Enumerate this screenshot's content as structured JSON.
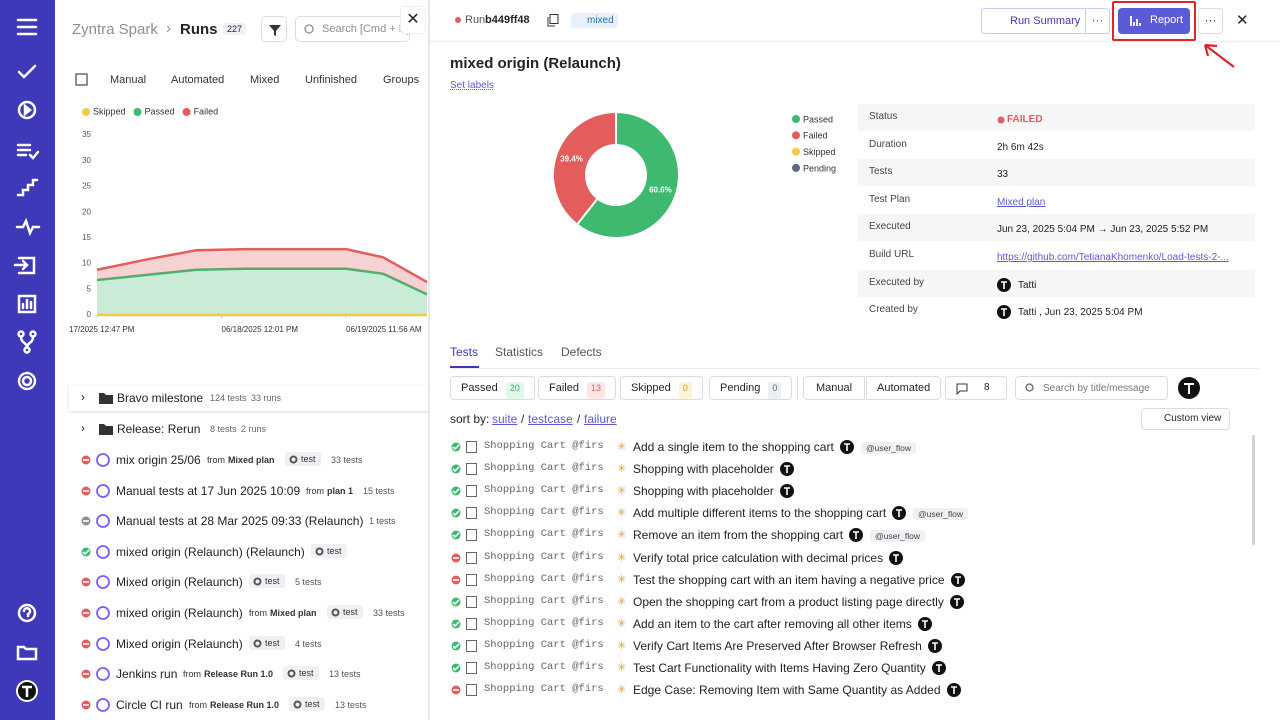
{
  "header": {
    "breadcrumb": "Zyntra Spark",
    "page": "Runs",
    "count": 227,
    "search": "Search [Cmd + K]"
  },
  "left_tabs": [
    "Manual",
    "Automated",
    "Mixed",
    "Unfinished",
    "Groups"
  ],
  "left_chart": {
    "type": "area",
    "legend": [
      {
        "name": "Skipped",
        "color": "#f2c94c"
      },
      {
        "name": "Passed",
        "color": "#3fb96f"
      },
      {
        "name": "Failed",
        "color": "#e35d5d"
      }
    ],
    "x": [
      0,
      0.4,
      0.8,
      1.2,
      1.6,
      2.0,
      2.3,
      2.65
    ],
    "xlim": [
      0,
      2.65
    ],
    "xticks": [
      {
        "value": 0,
        "label": "17/2025 12:47 PM"
      },
      {
        "value": 1,
        "label": "06/18/2025 12:01 PM"
      },
      {
        "value": 2,
        "label": "06/19/2025 11:56 AM"
      }
    ],
    "ylim": [
      0,
      35
    ],
    "yticks": [
      0,
      5,
      10,
      15,
      20,
      25,
      30,
      35
    ],
    "grid": false,
    "stacked": true,
    "series": [
      {
        "name": "Skipped",
        "color": "#f2c94c",
        "values": [
          0,
          0,
          0,
          0,
          0,
          0,
          0,
          0
        ]
      },
      {
        "name": "Passed",
        "color": "#3fb96f",
        "values": [
          6.8,
          7.8,
          8.8,
          9,
          9,
          9,
          8,
          4
        ]
      },
      {
        "name": "Failed",
        "color": "#e35d5d",
        "values": [
          2,
          3,
          3.8,
          3.8,
          3.8,
          3.8,
          3.2,
          2.4
        ]
      }
    ]
  },
  "groups": [
    {
      "name": "Bravo milestone",
      "tests": "124 tests",
      "runs": "33 runs"
    },
    {
      "name": "Release: Rerun",
      "tests": "8 tests",
      "runs": "2 runs"
    }
  ],
  "runs": [
    {
      "title": "mix origin 25/06",
      "status": "failed",
      "from": "from",
      "plan": "Mixed plan",
      "tag": "test",
      "tests": "33 tests"
    },
    {
      "title": "Manual tests at 17 Jun 2025 10:09",
      "status": "failed",
      "from": "from",
      "plan": "plan 1",
      "tests": "15 tests"
    },
    {
      "title": "Manual tests at 28 Mar 2025 09:33 (Relaunch)",
      "status": "skipped",
      "tests": "1 tests"
    },
    {
      "title": "mixed origin (Relaunch) (Relaunch)",
      "status": "passed",
      "tag": "test"
    },
    {
      "title": "Mixed origin (Relaunch)",
      "status": "failed",
      "tag": "test",
      "tests": "5 tests"
    },
    {
      "title": "mixed origin (Relaunch)",
      "status": "failed",
      "from": "from",
      "plan": "Mixed plan",
      "tag": "test",
      "tests": "33 tests"
    },
    {
      "title": "Mixed origin (Relaunch)",
      "status": "failed",
      "tag": "test",
      "tests": "4 tests"
    },
    {
      "title": "Jenkins run",
      "status": "failed",
      "from": "from",
      "plan": "Release Run 1.0",
      "tag": "test",
      "tests": "13 tests"
    },
    {
      "title": "Circle CI run",
      "status": "failed",
      "from": "from",
      "plan": "Release Run 1.0",
      "tag": "test",
      "tests": "13 tests"
    }
  ],
  "run": {
    "prefix": "Run",
    "id": "b449ff48",
    "badge": "mixed",
    "summary_button": "Run Summary",
    "report_button": "Report",
    "title": "mixed origin (Relaunch)",
    "set_labels": "Set labels",
    "donut": {
      "type": "pie",
      "legend": [
        {
          "name": "Passed",
          "color": "#3fb96f"
        },
        {
          "name": "Failed",
          "color": "#e35d5d"
        },
        {
          "name": "Skipped",
          "color": "#f2c94c"
        },
        {
          "name": "Pending",
          "color": "#5f6b7a"
        }
      ],
      "categories": [
        "Passed",
        "Failed"
      ],
      "values": [
        60.6,
        39.4
      ],
      "value_labels": [
        "60.6%",
        "39.4%"
      ],
      "colors": [
        "#3fb96f",
        "#e35d5d"
      ]
    },
    "details": [
      [
        "Status",
        "FAILED"
      ],
      [
        "Duration",
        "2h 6m 42s"
      ],
      [
        "Tests",
        "33"
      ],
      [
        "Test Plan",
        "Mixed plan"
      ],
      [
        "Executed",
        "Jun 23, 2025 5:04 PM → Jun 23, 2025 5:52 PM"
      ],
      [
        "Build URL",
        "https://github.com/TetianaKhomenko/Load-tests-2-..."
      ],
      [
        "Executed by",
        "Tatti"
      ],
      [
        "Created by",
        "Tatti , Jun 23, 2025 5:04 PM"
      ]
    ],
    "tabs": [
      "Tests",
      "Statistics",
      "Defects"
    ],
    "filters": [
      {
        "label": "Passed",
        "count": 20,
        "color": "#3fb96f",
        "bg": "#e3f6ea"
      },
      {
        "label": "Failed",
        "count": 13,
        "color": "#e35d5d",
        "bg": "#fde6e6"
      },
      {
        "label": "Skipped",
        "count": 0,
        "color": "#c9a227",
        "bg": "#fdf3d6"
      },
      {
        "label": "Pending",
        "count": 0,
        "color": "#5f6b7a",
        "bg": "#eceef1"
      }
    ],
    "type_filters": [
      "Manual",
      "Automated"
    ],
    "comments": 8,
    "search": "Search by title/message",
    "sort_label": "sort by:",
    "sort": [
      "suite",
      "testcase",
      "failure"
    ],
    "sep": "/",
    "custom_view": "Custom view",
    "tests": [
      {
        "suite": "Shopping Cart @firs...",
        "title": "Add a single item to the shopping cart",
        "status": "passed",
        "tag": "@user_flow"
      },
      {
        "suite": "Shopping Cart @firs...",
        "title": "Shopping with placeholder",
        "status": "passed"
      },
      {
        "suite": "Shopping Cart @firs...",
        "title": "Shopping with placeholder",
        "status": "passed"
      },
      {
        "suite": "Shopping Cart @firs...",
        "title": "Add multiple different items to the shopping cart",
        "status": "passed",
        "tag": "@user_flow"
      },
      {
        "suite": "Shopping Cart @firs...",
        "title": "Remove an item from the shopping cart",
        "status": "passed",
        "tag": "@user_flow"
      },
      {
        "suite": "Shopping Cart @firs...",
        "title": "Verify total price calculation with decimal prices",
        "status": "failed"
      },
      {
        "suite": "Shopping Cart @firs...",
        "title": "Test the shopping cart with an item having a negative price",
        "status": "failed"
      },
      {
        "suite": "Shopping Cart @firs...",
        "title": "Open the shopping cart from a product listing page directly",
        "status": "passed"
      },
      {
        "suite": "Shopping Cart @firs...",
        "title": "Add an item to the cart after removing all other items",
        "status": "passed"
      },
      {
        "suite": "Shopping Cart @firs...",
        "title": "Verify Cart Items Are Preserved After Browser Refresh",
        "status": "passed"
      },
      {
        "suite": "Shopping Cart @firs...",
        "title": "Test Cart Functionality with Items Having Zero Quantity",
        "status": "passed"
      },
      {
        "suite": "Shopping Cart @firs...",
        "title": "Edge Case: Removing Item with Same Quantity as Added",
        "status": "failed"
      }
    ]
  }
}
